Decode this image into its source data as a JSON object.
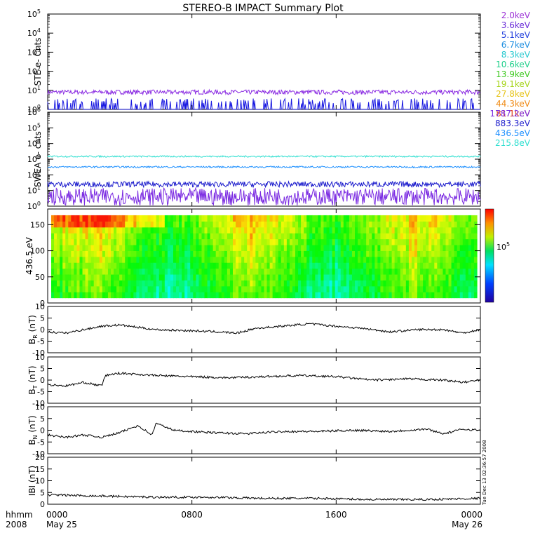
{
  "title": "STEREO-B IMPACT Summary Plot",
  "time_axis": {
    "unit_label": "hhmm",
    "year_label": "2008",
    "ticks": [
      {
        "time": "0000",
        "date": "May 25",
        "hour": 0
      },
      {
        "time": "0800",
        "date": "",
        "hour": 8
      },
      {
        "time": "1600",
        "date": "",
        "hour": 16
      },
      {
        "time": "0000",
        "date": "May 26",
        "hour": 24
      }
    ]
  },
  "timestamp_note": "Tue Dec 13 02:36:57 2008",
  "colors": {
    "axes": "#000000",
    "trace": "#000000",
    "ste_low": "#8a2be2",
    "ste_base": "#1515e0",
    "swea_1787": "#7b2be2",
    "swea_883": "#1a1acc",
    "swea_436": "#1e90ff",
    "swea_215": "#2fdfd0"
  },
  "chart_data": [
    {
      "id": "ste",
      "type": "line",
      "ylabel": "STE e- Cnts",
      "yscale": "log",
      "ylim": [
        1,
        100000
      ],
      "yticks": [
        {
          "base": "10",
          "exp": "0"
        },
        {
          "base": "10",
          "exp": "1"
        },
        {
          "base": "10",
          "exp": "2"
        },
        {
          "base": "10",
          "exp": "3"
        },
        {
          "base": "10",
          "exp": "4"
        },
        {
          "base": "10",
          "exp": "5"
        }
      ],
      "legend": [
        {
          "label": "2.0keV",
          "color": "#9b30d6"
        },
        {
          "label": "3.6keV",
          "color": "#6a2bd8"
        },
        {
          "label": "5.1keV",
          "color": "#2340dd"
        },
        {
          "label": "6.7keV",
          "color": "#1f8fe0"
        },
        {
          "label": "8.3keV",
          "color": "#27c9cf"
        },
        {
          "label": "10.6keV",
          "color": "#1fcf8a"
        },
        {
          "label": "13.9keV",
          "color": "#3cc81e"
        },
        {
          "label": "19.1keV",
          "color": "#a6d41a"
        },
        {
          "label": "27.8keV",
          "color": "#e6c419"
        },
        {
          "label": "44.3keV",
          "color": "#ef8a14"
        },
        {
          "label": "81.1keV",
          "color": "#e03a12"
        }
      ],
      "series": [
        {
          "color": "#8a2be2",
          "level": 8,
          "noise": 0.12
        },
        {
          "color": "#1515e0",
          "level": 1,
          "noise": 0.35
        }
      ]
    },
    {
      "id": "swea",
      "type": "line",
      "ylabel": "SWEA e- cnts",
      "yscale": "log",
      "ylim": [
        1,
        1000000
      ],
      "yticks": [
        {
          "base": "10",
          "exp": "0"
        },
        {
          "base": "10",
          "exp": "1"
        },
        {
          "base": "10",
          "exp": "2"
        },
        {
          "base": "10",
          "exp": "3"
        },
        {
          "base": "10",
          "exp": "4"
        },
        {
          "base": "10",
          "exp": "5"
        },
        {
          "base": "10",
          "exp": "6"
        }
      ],
      "legend": [
        {
          "label": "1787.2eV",
          "color": "#7b2be2"
        },
        {
          "label": "883.3eV",
          "color": "#1a1acc"
        },
        {
          "label": "436.5eV",
          "color": "#1e90ff"
        },
        {
          "label": "215.8eV",
          "color": "#2fdfd0"
        }
      ],
      "series": [
        {
          "color": "#2fdfd0",
          "level": 1500,
          "noise": 0.05
        },
        {
          "color": "#1e90ff",
          "level": 320,
          "noise": 0.05
        },
        {
          "color": "#1a1acc",
          "level": 25,
          "noise": 0.18
        },
        {
          "color": "#7b2be2",
          "level": 4,
          "noise": 0.55
        }
      ]
    },
    {
      "id": "pad",
      "type": "heatmap",
      "ylabel": "436.5 eV",
      "ylim": [
        0,
        180
      ],
      "yticks": [
        "0",
        "50",
        "100",
        "150"
      ],
      "colorbar_tick": {
        "base": "10",
        "exp": "5"
      }
    },
    {
      "id": "br",
      "type": "line",
      "ylabel": {
        "main": "B",
        "sub": "R",
        "unit": " (nT)"
      },
      "ylim": [
        -10,
        10
      ],
      "yticks": [
        "-10",
        "-5",
        "0",
        "5",
        "10"
      ],
      "segments": [
        [
          0,
          -1
        ],
        [
          1,
          -1.5
        ],
        [
          2,
          0
        ],
        [
          3,
          1.5
        ],
        [
          4,
          2
        ],
        [
          5,
          1
        ],
        [
          6,
          0
        ],
        [
          8,
          -0.5
        ],
        [
          9.5,
          -1
        ],
        [
          10.5,
          -1.5
        ],
        [
          11.5,
          0.5
        ],
        [
          13,
          1.5
        ],
        [
          14.5,
          2.5
        ],
        [
          16,
          1.5
        ],
        [
          17.5,
          0.5
        ],
        [
          19,
          -1
        ],
        [
          20.5,
          0
        ],
        [
          22,
          0
        ],
        [
          23,
          -1.5
        ],
        [
          24,
          0
        ]
      ]
    },
    {
      "id": "bt",
      "type": "line",
      "ylabel": {
        "main": "B",
        "sub": "T",
        "unit": " (nT)"
      },
      "ylim": [
        -10,
        10
      ],
      "yticks": [
        "-10",
        "-5",
        "0",
        "5",
        "10"
      ],
      "segments": [
        [
          0,
          -2
        ],
        [
          1,
          -2.5
        ],
        [
          2,
          -1
        ],
        [
          3,
          -2.5
        ],
        [
          3.2,
          2
        ],
        [
          4,
          3
        ],
        [
          6,
          2
        ],
        [
          8,
          1.5
        ],
        [
          10,
          1
        ],
        [
          12,
          1.5
        ],
        [
          14,
          2
        ],
        [
          16,
          1.5
        ],
        [
          18,
          0
        ],
        [
          20,
          0.5
        ],
        [
          22,
          0
        ],
        [
          23,
          -1
        ],
        [
          24,
          0
        ]
      ]
    },
    {
      "id": "bn",
      "type": "line",
      "ylabel": {
        "main": "B",
        "sub": "N",
        "unit": " (nT)"
      },
      "ylim": [
        -10,
        10
      ],
      "yticks": [
        "-10",
        "-5",
        "0",
        "5",
        "10"
      ],
      "segments": [
        [
          0,
          -2
        ],
        [
          1,
          -3
        ],
        [
          2,
          -2
        ],
        [
          3,
          -3
        ],
        [
          4,
          -1
        ],
        [
          5,
          2
        ],
        [
          5.8,
          -2
        ],
        [
          6,
          3
        ],
        [
          7,
          0
        ],
        [
          9,
          -1
        ],
        [
          11,
          -1.5
        ],
        [
          13,
          -0.5
        ],
        [
          15,
          -0.5
        ],
        [
          17,
          0
        ],
        [
          19,
          -0.5
        ],
        [
          21,
          0.5
        ],
        [
          22,
          -1.5
        ],
        [
          23,
          0.5
        ],
        [
          24,
          0
        ]
      ]
    },
    {
      "id": "bmag",
      "type": "line",
      "ylabel": {
        "main": "IBI",
        "sub": "",
        "unit": " (nT)"
      },
      "ylim": [
        0,
        20
      ],
      "yticks": [
        "0",
        "5",
        "10",
        "15",
        "20"
      ],
      "segments": [
        [
          0,
          4
        ],
        [
          3,
          3.5
        ],
        [
          6,
          3
        ],
        [
          9,
          3
        ],
        [
          12,
          2.5
        ],
        [
          15,
          2.5
        ],
        [
          18,
          2
        ],
        [
          21,
          2
        ],
        [
          24,
          2.5
        ]
      ]
    }
  ]
}
